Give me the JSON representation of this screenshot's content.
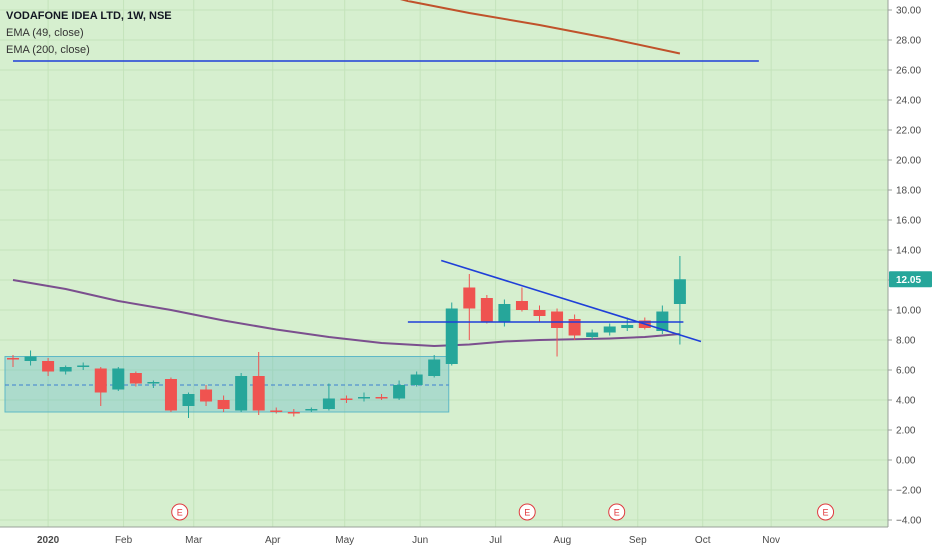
{
  "header": {
    "title": "VODAFONE IDEA LTD, 1W, NSE",
    "indicators": [
      "EMA (49, close)",
      "EMA (200, close)"
    ]
  },
  "colors": {
    "background": "#d6efcf",
    "axis_background": "#ffffff",
    "up": "#26a69a",
    "down": "#ef5350",
    "ema49": "#7b4f8e",
    "ema200": "#c0522b",
    "trendline": "#1f3fd8",
    "range_box": "#5fb8c6",
    "price_tag": "#26a69a",
    "event": "#e0393e"
  },
  "chart_data": {
    "type": "candlestick",
    "title": "VODAFONE IDEA LTD, 1W, NSE",
    "y_axis": {
      "range": [
        -4.5,
        31
      ],
      "ticks": [
        "30.00",
        "28.00",
        "26.00",
        "24.00",
        "22.00",
        "20.00",
        "18.00",
        "16.00",
        "14.00",
        "12.00",
        "10.00",
        "8.00",
        "6.00",
        "4.00",
        "2.00",
        "0.00",
        "−2.00",
        "−4.00"
      ],
      "tick_values": [
        30,
        28,
        26,
        24,
        22,
        20,
        18,
        16,
        14,
        12,
        10,
        8,
        6,
        4,
        2,
        0,
        -2,
        -4
      ]
    },
    "x_axis": {
      "labels": [
        "2020",
        "Feb",
        "Mar",
        "Apr",
        "May",
        "Jun",
        "Jul",
        "Aug",
        "Sep",
        "Oct",
        "Nov"
      ],
      "label_weeks": [
        2,
        6.3,
        10.3,
        14.8,
        18.9,
        23.2,
        27.5,
        31.3,
        35.6,
        39.3,
        43.2
      ]
    },
    "last_price": "12.05",
    "candles": [
      {
        "w": 0,
        "o": 6.8,
        "h": 7.0,
        "l": 6.2,
        "c": 6.7
      },
      {
        "w": 1,
        "o": 6.6,
        "h": 7.3,
        "l": 6.3,
        "c": 6.9
      },
      {
        "w": 2,
        "o": 6.6,
        "h": 6.8,
        "l": 5.6,
        "c": 5.9
      },
      {
        "w": 3,
        "o": 5.9,
        "h": 6.3,
        "l": 5.7,
        "c": 6.2
      },
      {
        "w": 4,
        "o": 6.2,
        "h": 6.5,
        "l": 6.0,
        "c": 6.3
      },
      {
        "w": 5,
        "o": 6.1,
        "h": 6.2,
        "l": 3.6,
        "c": 4.5
      },
      {
        "w": 6,
        "o": 4.7,
        "h": 6.2,
        "l": 4.6,
        "c": 6.1
      },
      {
        "w": 7,
        "o": 5.8,
        "h": 5.9,
        "l": 4.9,
        "c": 5.1
      },
      {
        "w": 8,
        "o": 5.1,
        "h": 5.3,
        "l": 4.8,
        "c": 5.2
      },
      {
        "w": 9,
        "o": 5.4,
        "h": 5.5,
        "l": 3.2,
        "c": 3.3
      },
      {
        "w": 10,
        "o": 3.6,
        "h": 4.5,
        "l": 2.8,
        "c": 4.4
      },
      {
        "w": 11,
        "o": 4.7,
        "h": 5.0,
        "l": 3.6,
        "c": 3.9
      },
      {
        "w": 12,
        "o": 4.0,
        "h": 4.3,
        "l": 3.2,
        "c": 3.4
      },
      {
        "w": 13,
        "o": 3.3,
        "h": 5.8,
        "l": 3.2,
        "c": 5.6
      },
      {
        "w": 14,
        "o": 5.6,
        "h": 7.2,
        "l": 3.0,
        "c": 3.3
      },
      {
        "w": 15,
        "o": 3.3,
        "h": 3.5,
        "l": 3.1,
        "c": 3.2
      },
      {
        "w": 16,
        "o": 3.2,
        "h": 3.4,
        "l": 2.9,
        "c": 3.1
      },
      {
        "w": 17,
        "o": 3.3,
        "h": 3.5,
        "l": 3.2,
        "c": 3.4
      },
      {
        "w": 18,
        "o": 3.4,
        "h": 5.1,
        "l": 3.3,
        "c": 4.1
      },
      {
        "w": 19,
        "o": 4.1,
        "h": 4.3,
        "l": 3.8,
        "c": 4.0
      },
      {
        "w": 20,
        "o": 4.1,
        "h": 4.5,
        "l": 3.9,
        "c": 4.2
      },
      {
        "w": 21,
        "o": 4.2,
        "h": 4.4,
        "l": 4.0,
        "c": 4.1
      },
      {
        "w": 22,
        "o": 4.1,
        "h": 5.3,
        "l": 4.0,
        "c": 5.0
      },
      {
        "w": 23,
        "o": 5.0,
        "h": 5.9,
        "l": 4.9,
        "c": 5.7
      },
      {
        "w": 24,
        "o": 5.6,
        "h": 7.0,
        "l": 5.5,
        "c": 6.7
      },
      {
        "w": 25,
        "o": 6.4,
        "h": 10.5,
        "l": 6.3,
        "c": 10.1
      },
      {
        "w": 26,
        "o": 11.5,
        "h": 12.4,
        "l": 8.0,
        "c": 10.1
      },
      {
        "w": 27,
        "o": 10.8,
        "h": 11.0,
        "l": 9.1,
        "c": 9.2
      },
      {
        "w": 28,
        "o": 9.2,
        "h": 10.7,
        "l": 8.9,
        "c": 10.4
      },
      {
        "w": 29,
        "o": 10.6,
        "h": 11.5,
        "l": 9.9,
        "c": 10.0
      },
      {
        "w": 30,
        "o": 10.0,
        "h": 10.3,
        "l": 9.2,
        "c": 9.6
      },
      {
        "w": 31,
        "o": 9.9,
        "h": 10.1,
        "l": 6.9,
        "c": 8.8
      },
      {
        "w": 32,
        "o": 9.4,
        "h": 9.7,
        "l": 8.0,
        "c": 8.3
      },
      {
        "w": 33,
        "o": 8.2,
        "h": 8.7,
        "l": 8.0,
        "c": 8.5
      },
      {
        "w": 34,
        "o": 8.5,
        "h": 9.1,
        "l": 8.3,
        "c": 8.9
      },
      {
        "w": 35,
        "o": 8.8,
        "h": 9.5,
        "l": 8.6,
        "c": 9.0
      },
      {
        "w": 36,
        "o": 9.3,
        "h": 9.5,
        "l": 8.7,
        "c": 8.8
      },
      {
        "w": 37,
        "o": 8.6,
        "h": 10.3,
        "l": 8.4,
        "c": 9.9
      },
      {
        "w": 38,
        "o": 10.4,
        "h": 13.6,
        "l": 7.7,
        "c": 12.05
      }
    ],
    "ema49": [
      [
        0,
        12.0
      ],
      [
        3,
        11.4
      ],
      [
        6,
        10.6
      ],
      [
        9,
        10.0
      ],
      [
        12,
        9.3
      ],
      [
        15,
        8.7
      ],
      [
        18,
        8.2
      ],
      [
        21,
        7.8
      ],
      [
        24,
        7.6
      ],
      [
        26,
        7.7
      ],
      [
        28,
        7.9
      ],
      [
        30,
        8.0
      ],
      [
        32,
        8.05
      ],
      [
        34,
        8.1
      ],
      [
        36,
        8.2
      ],
      [
        38,
        8.4
      ]
    ],
    "ema200": [
      [
        20.5,
        31.2
      ],
      [
        22.5,
        30.6
      ],
      [
        26,
        29.8
      ],
      [
        30,
        29.0
      ],
      [
        34,
        28.1
      ],
      [
        38,
        27.1
      ]
    ],
    "lines": [
      {
        "name": "horizontal-resistance",
        "from": [
          0,
          26.6
        ],
        "to": [
          42.5,
          26.6
        ]
      },
      {
        "name": "descending-trendline",
        "from": [
          24.4,
          13.3
        ],
        "to": [
          39.2,
          7.9
        ]
      },
      {
        "name": "neckline",
        "from": [
          22.5,
          9.2
        ],
        "to": [
          38.2,
          9.2
        ]
      }
    ],
    "range_box": {
      "w_from": 0,
      "w_to": 25,
      "top": 6.9,
      "bottom": 3.2,
      "mid": 5.0
    },
    "events": [
      {
        "label": "E",
        "w": 9.5
      },
      {
        "label": "E",
        "w": 29.3
      },
      {
        "label": "E",
        "w": 34.4
      },
      {
        "label": "E",
        "w": 46.3
      }
    ]
  }
}
